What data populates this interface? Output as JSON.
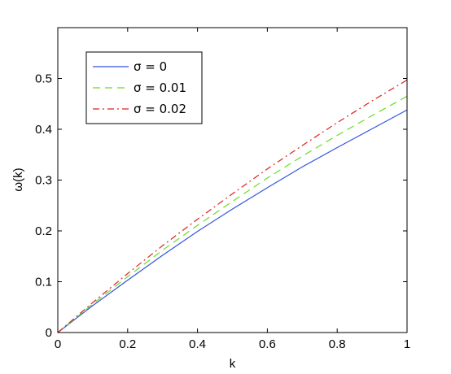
{
  "chart_data": {
    "type": "line",
    "title": "",
    "xlabel": "k",
    "ylabel": "ω(k)",
    "xlim": [
      0,
      1
    ],
    "ylim": [
      0,
      0.6
    ],
    "xticks": [
      "0",
      "0.2",
      "0.4",
      "0.6",
      "0.8",
      "1"
    ],
    "yticks": [
      "0",
      "0.1",
      "0.2",
      "0.3",
      "0.4",
      "0.5"
    ],
    "grid": false,
    "legend_position": "top-left",
    "x": [
      0,
      0.1,
      0.2,
      0.3,
      0.4,
      0.5,
      0.6,
      0.7,
      0.8,
      0.9,
      1.0
    ],
    "series": [
      {
        "name": "σ = 0",
        "color": "#3355dd",
        "style": "solid",
        "values": [
          0,
          0.053,
          0.103,
          0.152,
          0.199,
          0.243,
          0.285,
          0.326,
          0.364,
          0.401,
          0.438
        ]
      },
      {
        "name": "σ = 0.01",
        "color": "#66dd22",
        "style": "dashed",
        "values": [
          0,
          0.056,
          0.11,
          0.162,
          0.211,
          0.258,
          0.304,
          0.347,
          0.388,
          0.427,
          0.465
        ]
      },
      {
        "name": "σ = 0.02",
        "color": "#dd2222",
        "style": "dashdot",
        "values": [
          0,
          0.059,
          0.116,
          0.171,
          0.223,
          0.273,
          0.322,
          0.368,
          0.413,
          0.456,
          0.497
        ]
      }
    ]
  }
}
